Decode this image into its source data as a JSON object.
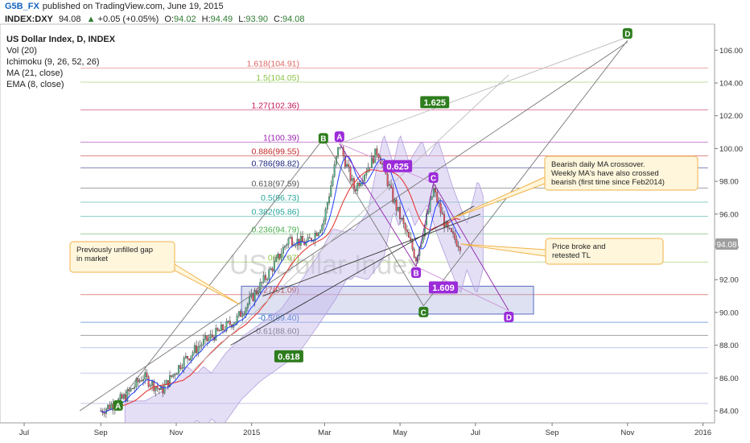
{
  "header": {
    "author": "G5B_FX",
    "published": "published on TradingView.com, June 19, 2015",
    "ticker": "INDEX:DXY",
    "last": "94.08",
    "change": "+0.05 (+0.05%)",
    "ohlc": {
      "o": "94.02",
      "h": "94.49",
      "l": "93.90",
      "c": "94.08"
    }
  },
  "legend": [
    "US Dollar Index, D, INDEX",
    "Vol (20)",
    "Ichimoku (9, 26, 52, 26)",
    "MA (21, close)",
    "EMA (8, close)"
  ],
  "watermark": "US Dollar Index",
  "price_tag": "94.08",
  "colors": {
    "up": "#53b987",
    "down": "#eb4d5c",
    "ma": "#e53935",
    "ema": "#1e3cff",
    "cloud": "#c6b8ec",
    "callout_bg": "#fff6dc",
    "callout_border": "#f0b24a",
    "green_box": "#2e7d1e",
    "purple_box": "#9b2bd9"
  },
  "chart_data": {
    "type": "candlestick",
    "title": "US Dollar Index, D, INDEX",
    "ylim": [
      83.5,
      107.5
    ],
    "y_ticks": [
      "84.00",
      "86.00",
      "88.00",
      "90.00",
      "92.00",
      "94.00",
      "96.00",
      "98.00",
      "100.00",
      "102.00",
      "104.00",
      "106.00"
    ],
    "x_ticks": [
      "Jul",
      "Sep",
      "Nov",
      "2015",
      "Mar",
      "May",
      "Jul",
      "Sep",
      "Nov",
      "2016"
    ],
    "price_path": [
      [
        "2014-09-01",
        84.0
      ],
      [
        "2014-09-20",
        84.8
      ],
      [
        "2014-10-05",
        86.1
      ],
      [
        "2014-10-20",
        85.2
      ],
      [
        "2014-11-05",
        86.9
      ],
      [
        "2014-11-20",
        88.0
      ],
      [
        "2014-12-05",
        88.8
      ],
      [
        "2014-12-20",
        89.6
      ],
      [
        "2015-01-05",
        91.3
      ],
      [
        "2015-01-20",
        93.0
      ],
      [
        "2015-01-31",
        94.5
      ],
      [
        "2015-02-15",
        94.2
      ],
      [
        "2015-02-28",
        95.5
      ],
      [
        "2015-03-13",
        100.3
      ],
      [
        "2015-03-25",
        97.5
      ],
      [
        "2015-04-13",
        99.9
      ],
      [
        "2015-04-25",
        97.0
      ],
      [
        "2015-05-14",
        93.3
      ],
      [
        "2015-05-25",
        96.5
      ],
      [
        "2015-05-28",
        97.5
      ],
      [
        "2015-06-08",
        95.0
      ],
      [
        "2015-06-19",
        94.08
      ]
    ],
    "fib_levels": [
      {
        "label": "1.618(104.91)",
        "value": 104.91,
        "color": "#e06666"
      },
      {
        "label": "1.5(104.05)",
        "value": 104.05,
        "color": "#8bc34a"
      },
      {
        "label": "1.27(102.36)",
        "value": 102.36,
        "color": "#c2185b"
      },
      {
        "label": "1(100.39)",
        "value": 100.39,
        "color": "#9c27b0"
      },
      {
        "label": "0.886(99.55)",
        "value": 99.55,
        "color": "#c62828"
      },
      {
        "label": "0.786(98.82)",
        "value": 98.82,
        "color": "#1a237e"
      },
      {
        "label": "0.618(97.59)",
        "value": 97.59,
        "color": "#555555"
      },
      {
        "label": "0.5(96.73)",
        "value": 96.73,
        "color": "#26a69a"
      },
      {
        "label": "0.382(95.86)",
        "value": 95.86,
        "color": "#26a69a"
      },
      {
        "label": "0.236(94.79)",
        "value": 94.79,
        "color": "#4caf50"
      },
      {
        "label": "0(93.07)",
        "value": 93.07,
        "color": "#8bc34a"
      },
      {
        "label": "-0.27(91.09)",
        "value": 91.09,
        "color": "#c62828"
      },
      {
        "label": "-0.5(89.40)",
        "value": 89.4,
        "color": "#1565c0"
      },
      {
        "label": "-0.61(88.60)",
        "value": 88.6,
        "color": "#555555"
      }
    ],
    "wave_labels": [
      {
        "text": "A",
        "style": "green",
        "date": "2014-09-15",
        "price": 84.3
      },
      {
        "text": "B",
        "style": "green",
        "date": "2015-02-28",
        "price": 100.6
      },
      {
        "text": "C",
        "style": "green",
        "date": "2015-05-20",
        "price": 90.0
      },
      {
        "text": "D",
        "style": "green",
        "date": "2015-11-01",
        "price": 107.0
      },
      {
        "text": "A",
        "style": "purple",
        "date": "2015-03-13",
        "price": 100.7
      },
      {
        "text": "B",
        "style": "purple",
        "date": "2015-05-14",
        "price": 92.4
      },
      {
        "text": "C",
        "style": "purple",
        "date": "2015-05-28",
        "price": 98.2
      },
      {
        "text": "D",
        "style": "purple",
        "date": "2015-07-28",
        "price": 89.7
      }
    ],
    "ratio_boxes": [
      {
        "text": "1.625",
        "style": "green",
        "date": "2015-05-18",
        "price": 102.8
      },
      {
        "text": "0.625",
        "style": "purple",
        "date": "2015-04-18",
        "price": 98.9
      },
      {
        "text": "1.609",
        "style": "purple",
        "date": "2015-05-25",
        "price": 91.5
      },
      {
        "text": "0.618",
        "style": "green",
        "date": "2015-01-20",
        "price": 87.3
      }
    ],
    "annotations": [
      {
        "text": "Previously unfilled gap in market",
        "lines": [
          "Previously unfilled gap",
          "in market"
        ]
      },
      {
        "text": "Bearish daily MA crossover. Weekly MA's have also crossed bearish (first time since Feb2014)",
        "lines": [
          "Bearish daily MA crossover.",
          "Weekly MA's have also crossed",
          "bearish (first time since Feb2014)"
        ]
      },
      {
        "text": "Price broke and retested TL",
        "lines": [
          "Price broke and",
          "retested TL"
        ]
      }
    ]
  }
}
